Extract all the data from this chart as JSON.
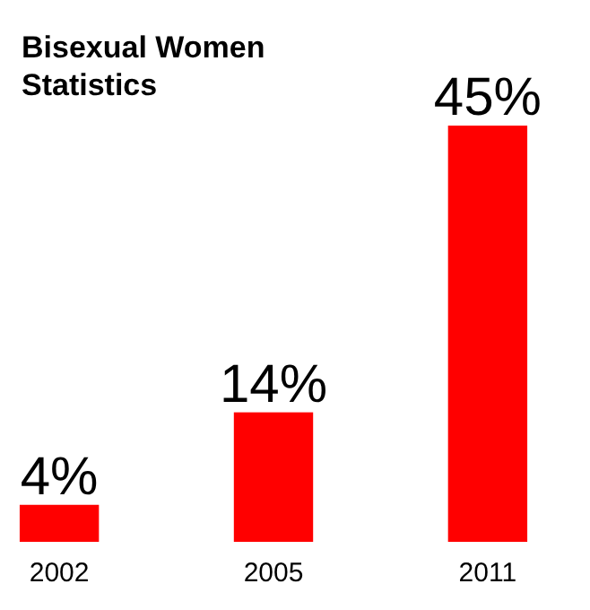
{
  "chart_data": {
    "type": "bar",
    "title": "Bisexual Women Statistics",
    "categories": [
      "2002",
      "2005",
      "2011"
    ],
    "values": [
      4,
      14,
      45
    ],
    "value_labels": [
      "4%",
      "14%",
      "45%"
    ],
    "color": "#ff0000"
  }
}
